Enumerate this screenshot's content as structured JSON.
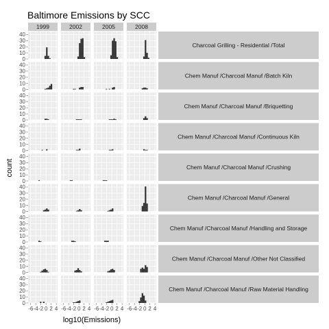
{
  "chart_data": {
    "type": "bar",
    "subtype": "faceted-histogram",
    "title": "Baltimore Emissions by SCC",
    "xlabel": "log10(Emissions)",
    "ylabel": "count",
    "x_ticks": [
      "-6",
      "-4",
      "-2",
      "0",
      "2",
      "4"
    ],
    "x_range": [
      -7,
      4.5
    ],
    "y_ticks": [
      "0",
      "10",
      "20",
      "30",
      "40"
    ],
    "y_range": [
      0,
      45
    ],
    "bin_width": 0.6,
    "column_facets": [
      "1999",
      "2002",
      "2005",
      "2008"
    ],
    "row_facets": [
      "Charcoal Grilling - Residential /Total",
      "Chem Manuf /Charcoal Manuf /Batch Kiln",
      "Chem Manuf /Charcoal Manuf /Briquetting",
      "Chem Manuf /Charcoal Manuf /Continuous Kiln",
      "Chem Manuf /Charcoal Manuf /Crushing",
      "Chem Manuf /Charcoal Manuf /General",
      "Chem Manuf /Charcoal Manuf /Handling and Storage",
      "Chem Manuf /Charcoal Manuf /Other Not Classified",
      "Chem Manuf /Charcoal Manuf /Raw Material Handling"
    ],
    "panels": [
      [
        {
          "bins": [
            [
              -0.6,
              5
            ],
            [
              0,
              19
            ],
            [
              0.6,
              5
            ],
            [
              1.2,
              1
            ]
          ]
        },
        {
          "bins": [
            [
              -0.6,
              4
            ],
            [
              0,
              26
            ],
            [
              0.6,
              33
            ],
            [
              1.2,
              34
            ],
            [
              1.8,
              3
            ]
          ]
        },
        {
          "bins": [
            [
              -0.6,
              6
            ],
            [
              0,
              30
            ],
            [
              0.6,
              34
            ],
            [
              1.2,
              29
            ],
            [
              1.8,
              3
            ]
          ]
        },
        {
          "bins": [
            [
              -0.6,
              4
            ],
            [
              0,
              31
            ],
            [
              0.6,
              10
            ],
            [
              1.2,
              2
            ]
          ]
        }
      ],
      [
        {
          "bins": [
            [
              -0.6,
              1
            ],
            [
              0,
              2
            ],
            [
              0.6,
              3
            ],
            [
              1.2,
              6
            ],
            [
              1.8,
              9
            ]
          ]
        },
        {
          "bins": [
            [
              -2.4,
              1
            ],
            [
              -1.8,
              1
            ],
            [
              0,
              3
            ],
            [
              0.6,
              4
            ],
            [
              1.2,
              4
            ]
          ]
        },
        {
          "bins": [
            [
              -2.4,
              1
            ],
            [
              -1.2,
              1
            ],
            [
              0,
              3
            ],
            [
              0.6,
              4
            ]
          ]
        },
        {
          "bins": [
            [
              -1.2,
              2
            ],
            [
              -0.6,
              3
            ],
            [
              0,
              3
            ],
            [
              0.6,
              2
            ]
          ]
        }
      ],
      [
        {
          "bins": [
            [
              -0.6,
              2
            ],
            [
              0,
              2
            ],
            [
              0.6,
              1
            ]
          ]
        },
        {
          "bins": [
            [
              -1.2,
              1
            ],
            [
              -0.6,
              1
            ],
            [
              0,
              1
            ],
            [
              0.6,
              1
            ]
          ]
        },
        {
          "bins": [
            [
              -1.2,
              1
            ],
            [
              -0.6,
              1
            ],
            [
              0,
              1
            ],
            [
              0.6,
              2
            ],
            [
              1.2,
              1
            ]
          ]
        },
        {
          "bins": [
            [
              -0.6,
              3
            ],
            [
              0,
              6
            ],
            [
              0.6,
              3
            ]
          ]
        }
      ],
      [
        {
          "bins": [
            [
              -1.8,
              1
            ],
            [
              0,
              2
            ]
          ]
        },
        {
          "bins": [
            [
              -1.2,
              1
            ],
            [
              -0.6,
              1
            ],
            [
              0,
              3
            ]
          ]
        },
        {
          "bins": [
            [
              -1.2,
              1
            ],
            [
              -0.6,
              1
            ],
            [
              0,
              2
            ]
          ]
        },
        {
          "bins": [
            [
              -0.6,
              2
            ],
            [
              0,
              1
            ],
            [
              0.6,
              1
            ]
          ]
        }
      ],
      [
        {
          "bins": [
            [
              -3.0,
              1
            ]
          ]
        },
        {
          "bins": [
            [
              -3.6,
              1
            ],
            [
              -3.0,
              1
            ]
          ]
        },
        {
          "bins": [
            [
              -3.6,
              1
            ],
            [
              -3.0,
              1
            ],
            [
              -2.4,
              1
            ]
          ]
        },
        {
          "bins": []
        }
      ],
      [
        {
          "bins": [
            [
              -1.2,
              2
            ],
            [
              -0.6,
              3
            ],
            [
              0,
              5
            ],
            [
              0.6,
              3
            ]
          ]
        },
        {
          "bins": [
            [
              -1.2,
              1
            ],
            [
              -0.6,
              2
            ],
            [
              0,
              4
            ],
            [
              0.6,
              2
            ]
          ]
        },
        {
          "bins": [
            [
              -1.8,
              1
            ],
            [
              -1.2,
              2
            ],
            [
              -0.6,
              3
            ],
            [
              0,
              5
            ]
          ]
        },
        {
          "bins": [
            [
              -1.2,
              9
            ],
            [
              -0.6,
              14
            ],
            [
              0,
              41
            ],
            [
              0.6,
              13
            ]
          ]
        }
      ],
      [
        {
          "bins": [
            [
              -3.0,
              2
            ],
            [
              -2.4,
              1
            ]
          ]
        },
        {
          "bins": [
            [
              -3.0,
              2
            ],
            [
              -2.4,
              2
            ],
            [
              -1.8,
              1
            ]
          ]
        },
        {
          "bins": [
            [
              -3.0,
              2
            ],
            [
              -2.4,
              2
            ],
            [
              -1.8,
              2
            ]
          ]
        },
        {
          "bins": []
        }
      ],
      [
        {
          "bins": [
            [
              -2.4,
              1
            ],
            [
              -1.8,
              3
            ],
            [
              -1.2,
              5
            ],
            [
              -0.6,
              6
            ],
            [
              0,
              4
            ],
            [
              0.6,
              1
            ]
          ]
        },
        {
          "bins": [
            [
              -1.8,
              3
            ],
            [
              -1.2,
              4
            ],
            [
              -0.6,
              7
            ],
            [
              0,
              4
            ],
            [
              0.6,
              2
            ]
          ]
        },
        {
          "bins": [
            [
              -1.8,
              2
            ],
            [
              -1.2,
              3
            ],
            [
              -0.6,
              5
            ],
            [
              0,
              6
            ],
            [
              0.6,
              4
            ]
          ]
        },
        {
          "bins": [
            [
              -1.8,
              6
            ],
            [
              -1.2,
              8
            ],
            [
              -0.6,
              6
            ],
            [
              0,
              12
            ],
            [
              0.6,
              9
            ]
          ]
        }
      ],
      [
        {
          "bins": [
            [
              -2.4,
              2
            ],
            [
              -1.2,
              2
            ]
          ]
        },
        {
          "bins": [
            [
              -2.4,
              1
            ],
            [
              -1.8,
              1
            ],
            [
              -1.2,
              2
            ],
            [
              -0.6,
              3
            ],
            [
              0,
              4
            ]
          ]
        },
        {
          "bins": [
            [
              -2.4,
              1
            ],
            [
              -1.8,
              2
            ],
            [
              -1.2,
              3
            ],
            [
              -0.6,
              4
            ],
            [
              0,
              5
            ]
          ]
        },
        {
          "bins": [
            [
              -2.4,
              3
            ],
            [
              -1.8,
              9
            ],
            [
              -1.2,
              16
            ],
            [
              -0.6,
              12
            ],
            [
              0,
              4
            ]
          ]
        }
      ]
    ],
    "colors": {
      "panel_background": "#ebebeb",
      "grid_major": "#ffffff",
      "grid_minor": "#f2f2f2",
      "bar_fill": "#333333",
      "strip_background": "#cccccc",
      "page_background": "#ffffff",
      "tick_text": "#4d4d4d"
    },
    "grid": true
  }
}
